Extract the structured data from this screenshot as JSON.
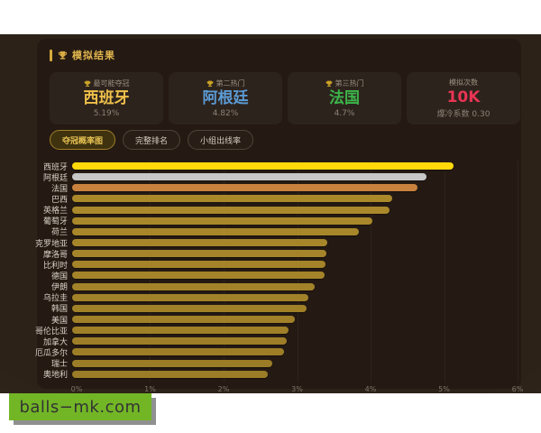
{
  "header": {
    "title": "模拟结果",
    "icon": "trophy-icon"
  },
  "stat_cards": [
    {
      "label": "最可能夺冠",
      "value": "西班牙",
      "sub": "5.19%",
      "value_color": "#efc14a",
      "icon": true
    },
    {
      "label": "第二热门",
      "value": "阿根廷",
      "sub": "4.82%",
      "value_color": "#5b9bd5",
      "icon": true
    },
    {
      "label": "第三热门",
      "value": "法国",
      "sub": "4.7%",
      "value_color": "#3cb54a",
      "icon": true
    },
    {
      "label": "模拟次数",
      "value": "10K",
      "sub": "爆冷系数 0.30",
      "value_color": "#e83553",
      "icon": false
    }
  ],
  "tabs": [
    {
      "label": "夺冠概率图",
      "active": true
    },
    {
      "label": "完整排名",
      "active": false
    },
    {
      "label": "小组出线率",
      "active": false
    }
  ],
  "chart_data": {
    "type": "bar",
    "orientation": "horizontal",
    "title": "夺冠概率图",
    "categories": [
      "西班牙",
      "阿根廷",
      "法国",
      "巴西",
      "英格兰",
      "葡萄牙",
      "荷兰",
      "克罗地亚",
      "摩洛哥",
      "比利时",
      "德国",
      "伊朗",
      "乌拉圭",
      "韩国",
      "美国",
      "哥伦比亚",
      "加拿大",
      "厄瓜多尔",
      "瑞士",
      "奥地利"
    ],
    "values": [
      5.19,
      4.82,
      4.7,
      4.36,
      4.32,
      4.08,
      3.9,
      3.47,
      3.46,
      3.45,
      3.44,
      3.3,
      3.21,
      3.19,
      3.03,
      2.94,
      2.92,
      2.88,
      2.72,
      2.66
    ],
    "unit": "%",
    "xlim": [
      0,
      6
    ],
    "x_ticks": [
      "0%",
      "1%",
      "2%",
      "3%",
      "4%",
      "5%",
      "6%"
    ],
    "grid": "vertical-faint",
    "bar_colors": {
      "rank1": "#ffd90a",
      "rank2": "#c7c7c7",
      "rank3": "#c9823e",
      "others": "#a8862b"
    }
  },
  "watermark": {
    "text": "balls−mk.com",
    "bg_color": "#72b626"
  },
  "theme": {
    "panel_bg": "#241a13",
    "accent_gold": "#e0b44e"
  }
}
